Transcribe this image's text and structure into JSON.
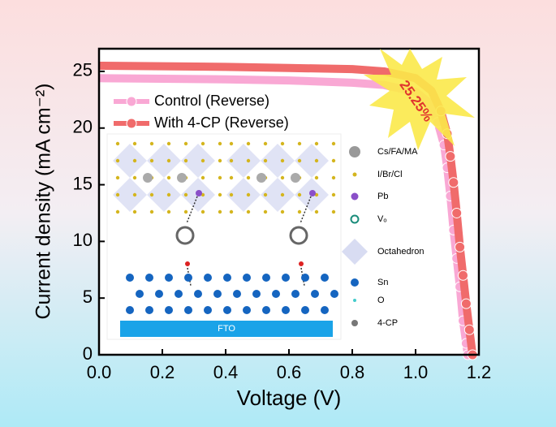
{
  "chart_data": {
    "type": "line",
    "xlabel": "Voltage (V)",
    "ylabel": "Current density (mA cm⁻²)",
    "annotation": "25.25%",
    "xlim": [
      0,
      1.2
    ],
    "xticks": [
      {
        "value": 0,
        "label": "0.0"
      },
      0.2,
      0.4,
      0.6,
      0.8,
      {
        "value": 1,
        "label": "1.0"
      },
      1.2
    ],
    "ylim": [
      0,
      27
    ],
    "yticks": [
      0,
      5,
      10,
      15,
      20,
      25
    ],
    "series": [
      {
        "name": "Control (Reverse)",
        "color": "#f9a8d4",
        "x": [
          0,
          0.2,
          0.4,
          0.6,
          0.8,
          0.9,
          1.0,
          1.04,
          1.07,
          1.09,
          1.1,
          1.11,
          1.12,
          1.13,
          1.14,
          1.15,
          1.16,
          1.165
        ],
        "values": [
          24.4,
          24.35,
          24.3,
          24.2,
          24.0,
          23.8,
          23.2,
          22.3,
          20.5,
          18.5,
          16.5,
          14,
          11,
          8.5,
          6,
          3,
          1,
          0
        ]
      },
      {
        "name": "With 4-CP (Reverse)",
        "color": "#f06b6b",
        "x": [
          0,
          0.2,
          0.4,
          0.6,
          0.8,
          0.9,
          1.0,
          1.05,
          1.08,
          1.1,
          1.11,
          1.12,
          1.13,
          1.14,
          1.15,
          1.16,
          1.17,
          1.18
        ],
        "values": [
          25.5,
          25.45,
          25.4,
          25.3,
          25.2,
          25.0,
          24.4,
          23.3,
          21.5,
          19.5,
          17.5,
          15.2,
          12.5,
          9.5,
          7,
          4.5,
          2.2,
          0
        ]
      }
    ],
    "legend": "upper left"
  },
  "inset": {
    "substrate": "FTO",
    "legend": [
      "Cs/FA/MA",
      "I/Br/Cl",
      "Pb",
      "Vₒ",
      "Octahedron",
      "Sn",
      "O",
      "4-CP"
    ]
  }
}
